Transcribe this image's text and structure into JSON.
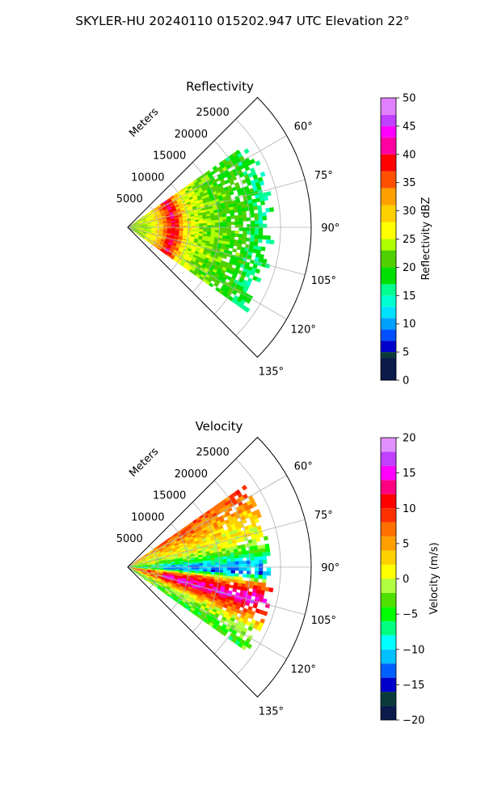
{
  "figure": {
    "suptitle": "SKYLER-HU  20240110  015202.947 UTC Elevation 22°"
  },
  "chart_data": [
    {
      "type": "heatmap",
      "projection": "polar-sector",
      "title": "Reflectivity",
      "radial_label": "Meters",
      "theta_range_deg": [
        45,
        135
      ],
      "r_range_m": [
        0,
        30000
      ],
      "r_ticks": [
        5000,
        10000,
        15000,
        20000,
        25000
      ],
      "theta_ticks_deg": [
        60,
        75,
        90,
        105,
        120,
        135
      ],
      "theta_tick_labels": [
        "60°",
        "75°",
        "90°",
        "105°",
        "120°",
        "135°"
      ],
      "grid": true,
      "data_extent": {
        "theta_deg": [
          55,
          125
        ],
        "r_max_m": [
          21500,
          24000
        ]
      },
      "field_description": "Reflectivity arcs: near-radar band ~20-25 dBZ, ring of 35-45 dBZ near 7500 m, outer echoes 15-25 dBZ",
      "radial_profile": [
        [
          0,
          23
        ],
        [
          3000,
          24
        ],
        [
          5000,
          28
        ],
        [
          6500,
          35
        ],
        [
          7500,
          40
        ],
        [
          8500,
          35
        ],
        [
          10000,
          26
        ],
        [
          14000,
          22
        ],
        [
          19000,
          20
        ],
        [
          23000,
          16
        ]
      ],
      "colorbar": {
        "label": "Reflectivity dBZ",
        "range": [
          0,
          50
        ],
        "ticks": [
          0,
          5,
          10,
          15,
          20,
          25,
          30,
          35,
          40,
          45,
          50
        ],
        "tick_labels": [
          "0",
          "5",
          "10",
          "15",
          "20",
          "25",
          "30",
          "35",
          "40",
          "45",
          "50"
        ],
        "colormap": [
          [
            0,
            "#0a1a4a"
          ],
          [
            4,
            "#0a3a3a"
          ],
          [
            5,
            "#0000cc"
          ],
          [
            7,
            "#0050ff"
          ],
          [
            9,
            "#00a0ff"
          ],
          [
            11,
            "#00e0ff"
          ],
          [
            13,
            "#00ffd0"
          ],
          [
            15,
            "#00ff90"
          ],
          [
            17,
            "#00e000"
          ],
          [
            20,
            "#50d000"
          ],
          [
            23,
            "#b0ff00"
          ],
          [
            25,
            "#ffff00"
          ],
          [
            28,
            "#ffd000"
          ],
          [
            31,
            "#ffa000"
          ],
          [
            34,
            "#ff5000"
          ],
          [
            37,
            "#ff0000"
          ],
          [
            40,
            "#ff00a0"
          ],
          [
            43,
            "#ff00ff"
          ],
          [
            45,
            "#c040ff"
          ],
          [
            47,
            "#e080ff"
          ],
          [
            50,
            "#ffd0ff"
          ]
        ]
      }
    },
    {
      "type": "heatmap",
      "projection": "polar-sector",
      "title": "Velocity",
      "radial_label": "Meters",
      "theta_range_deg": [
        45,
        135
      ],
      "r_range_m": [
        0,
        30000
      ],
      "r_ticks": [
        5000,
        10000,
        15000,
        20000,
        25000
      ],
      "theta_ticks_deg": [
        60,
        75,
        90,
        105,
        120,
        135
      ],
      "theta_tick_labels": [
        "60°",
        "75°",
        "90°",
        "105°",
        "120°",
        "135°"
      ],
      "grid": true,
      "data_extent": {
        "theta_deg": [
          55,
          125
        ],
        "r_max_m": [
          21500,
          24000
        ]
      },
      "field_description": "Velocity: orange/red (+5 to +10 m/s) at upper sector, cyan/green (-10 m/s) near 90°, magenta (+15 m/s) band near 100-110°, yellow/green lower sector",
      "angular_profile": [
        [
          56,
          8
        ],
        [
          62,
          6
        ],
        [
          70,
          2
        ],
        [
          78,
          0
        ],
        [
          84,
          -5
        ],
        [
          88,
          -10
        ],
        [
          93,
          -12
        ],
        [
          97,
          5
        ],
        [
          101,
          12
        ],
        [
          105,
          15
        ],
        [
          110,
          8
        ],
        [
          116,
          0
        ],
        [
          122,
          -4
        ]
      ],
      "colorbar": {
        "label": "Velocity (m/s)",
        "range": [
          -20,
          20
        ],
        "ticks": [
          -20,
          -15,
          -10,
          -5,
          0,
          5,
          10,
          15,
          20
        ],
        "tick_labels": [
          "−20",
          "−15",
          "−10",
          "−5",
          "0",
          "5",
          "10",
          "15",
          "20"
        ],
        "colormap": [
          [
            -20,
            "#0a1a4a"
          ],
          [
            -18,
            "#0a3a3a"
          ],
          [
            -16,
            "#0000cc"
          ],
          [
            -14,
            "#0060ff"
          ],
          [
            -12,
            "#00c0ff"
          ],
          [
            -10,
            "#00ffff"
          ],
          [
            -8,
            "#00ff80"
          ],
          [
            -6,
            "#00ff00"
          ],
          [
            -4,
            "#50e000"
          ],
          [
            -2,
            "#b0ff40"
          ],
          [
            0,
            "#ffff00"
          ],
          [
            2,
            "#ffd000"
          ],
          [
            4,
            "#ffa000"
          ],
          [
            6,
            "#ff7000"
          ],
          [
            8,
            "#ff3000"
          ],
          [
            10,
            "#ff0000"
          ],
          [
            12,
            "#ff0080"
          ],
          [
            14,
            "#ff00ff"
          ],
          [
            16,
            "#c040ff"
          ],
          [
            18,
            "#e090ff"
          ],
          [
            20,
            "#ffd0ff"
          ]
        ]
      }
    }
  ]
}
